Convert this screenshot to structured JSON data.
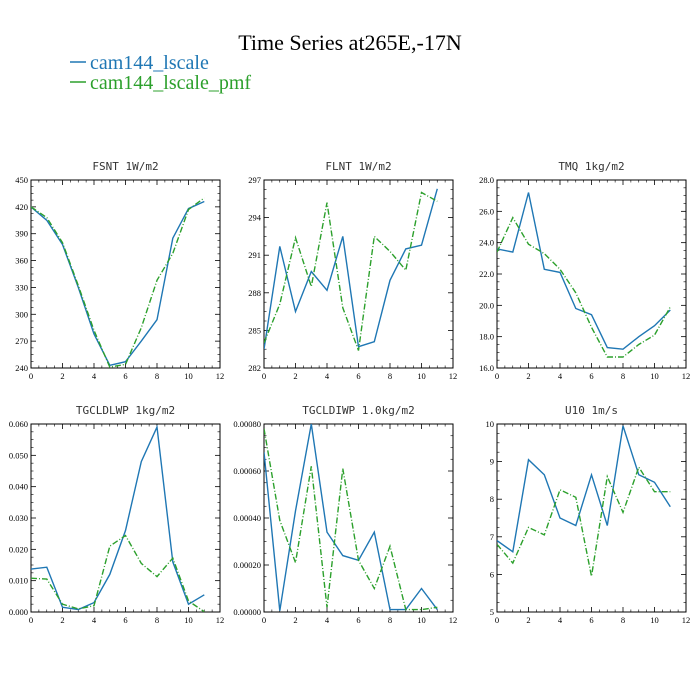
{
  "title": "Time Series at265E,-17N",
  "legend": [
    {
      "label": "cam144_lscale",
      "color": "#1f77b4",
      "dash": "solid"
    },
    {
      "label": "cam144_lscale_pmf",
      "color": "#2ca02c",
      "dash": "dashdot"
    }
  ],
  "chart_data": [
    {
      "type": "line",
      "title": "FSNT   1W/m2",
      "xlim": [
        0,
        12
      ],
      "xticks": [
        "0",
        "2",
        "4",
        "6",
        "8",
        "10",
        "12"
      ],
      "ylim": [
        240,
        450
      ],
      "yticks": [
        "240",
        "270",
        "300",
        "330",
        "360",
        "390",
        "420",
        "450"
      ],
      "x": [
        0,
        1,
        2,
        3,
        4,
        5,
        6,
        7,
        8,
        9,
        10,
        11
      ],
      "series": [
        {
          "name": "cam144_lscale",
          "values": [
            420,
            405,
            378,
            330,
            278,
            243,
            247,
            270,
            294,
            385,
            418,
            426
          ]
        },
        {
          "name": "cam144_lscale_pmf",
          "values": [
            420,
            408,
            380,
            332,
            282,
            241,
            244,
            285,
            338,
            368,
            417,
            430
          ]
        }
      ]
    },
    {
      "type": "line",
      "title": "FLNT   1W/m2",
      "xlim": [
        0,
        12
      ],
      "xticks": [
        "0",
        "2",
        "4",
        "6",
        "8",
        "10",
        "12"
      ],
      "ylim": [
        282,
        297
      ],
      "yticks": [
        "282",
        "285",
        "288",
        "291",
        "294",
        "297"
      ],
      "x": [
        0,
        1,
        2,
        3,
        4,
        5,
        6,
        7,
        8,
        9,
        10,
        11
      ],
      "series": [
        {
          "name": "cam144_lscale",
          "values": [
            283.5,
            291.7,
            286.5,
            289.7,
            288.2,
            292.5,
            283.7,
            284.1,
            289,
            291.5,
            291.8,
            296.3
          ]
        },
        {
          "name": "cam144_lscale_pmf",
          "values": [
            284,
            287.1,
            292.4,
            288.5,
            295.2,
            286.8,
            283.4,
            292.5,
            291.3,
            289.8,
            296,
            295.3
          ]
        }
      ]
    },
    {
      "type": "line",
      "title": "TMQ   1kg/m2",
      "xlim": [
        0,
        12
      ],
      "xticks": [
        "0",
        "2",
        "4",
        "6",
        "8",
        "10",
        "12"
      ],
      "ylim": [
        16,
        28
      ],
      "yticks": [
        "16.0",
        "18.0",
        "20.0",
        "22.0",
        "24.0",
        "26.0",
        "28.0"
      ],
      "x": [
        0,
        1,
        2,
        3,
        4,
        5,
        6,
        7,
        8,
        9,
        10,
        11
      ],
      "series": [
        {
          "name": "cam144_lscale",
          "values": [
            23.6,
            23.4,
            27.2,
            22.3,
            22.1,
            19.8,
            19.4,
            17.3,
            17.2,
            18,
            18.7,
            19.7
          ]
        },
        {
          "name": "cam144_lscale_pmf",
          "values": [
            23.4,
            25.6,
            23.9,
            23.3,
            22.3,
            20.8,
            18.6,
            16.7,
            16.7,
            17.5,
            18.1,
            19.9
          ]
        }
      ]
    },
    {
      "type": "line",
      "title": "TGCLDLWP   1kg/m2",
      "xlim": [
        0,
        12
      ],
      "xticks": [
        "0",
        "2",
        "4",
        "6",
        "8",
        "10",
        "12"
      ],
      "ylim": [
        0,
        0.06
      ],
      "yticks": [
        "0.000",
        "0.010",
        "0.020",
        "0.030",
        "0.040",
        "0.050",
        "0.060"
      ],
      "x": [
        0,
        1,
        2,
        3,
        4,
        5,
        6,
        7,
        8,
        9,
        10,
        11
      ],
      "series": [
        {
          "name": "cam144_lscale",
          "values": [
            0.0137,
            0.0143,
            0.0015,
            0.0008,
            0.003,
            0.012,
            0.026,
            0.048,
            0.059,
            0.016,
            0.0025,
            0.0055
          ]
        },
        {
          "name": "cam144_lscale_pmf",
          "values": [
            0.0108,
            0.0105,
            0.0025,
            0.001,
            0.002,
            0.021,
            0.0244,
            0.0155,
            0.0113,
            0.0172,
            0.0035,
            0.0001
          ]
        }
      ]
    },
    {
      "type": "line",
      "title": "TGCLDIWP   1.0kg/m2",
      "xlim": [
        0,
        12
      ],
      "xticks": [
        "0",
        "2",
        "4",
        "6",
        "8",
        "10",
        "12"
      ],
      "ylim": [
        0,
        0.0008
      ],
      "yticks": [
        "0.00000",
        "0.00020",
        "0.00040",
        "0.00060",
        "0.00080"
      ],
      "x": [
        0,
        1,
        2,
        3,
        4,
        5,
        6,
        7,
        8,
        9,
        10,
        11
      ],
      "series": [
        {
          "name": "cam144_lscale",
          "values": [
            0.00068,
            5e-06,
            0.00043,
            0.0008,
            0.00034,
            0.00024,
            0.00022,
            0.00034,
            1e-05,
            1e-05,
            0.0001,
            1e-05
          ]
        },
        {
          "name": "cam144_lscale_pmf",
          "values": [
            0.00078,
            0.00039,
            0.00021,
            0.00062,
            2e-05,
            0.00061,
            0.00022,
            0.0001,
            0.00028,
            1e-05,
            1e-05,
            2e-05
          ]
        }
      ]
    },
    {
      "type": "line",
      "title": "U10   1m/s",
      "xlim": [
        0,
        12
      ],
      "xticks": [
        "0",
        "2",
        "4",
        "6",
        "8",
        "10",
        "12"
      ],
      "ylim": [
        5,
        10
      ],
      "yticks": [
        "5",
        "6",
        "7",
        "8",
        "9",
        "10"
      ],
      "x": [
        0,
        1,
        2,
        3,
        4,
        5,
        6,
        7,
        8,
        9,
        10,
        11
      ],
      "series": [
        {
          "name": "cam144_lscale",
          "values": [
            6.9,
            6.6,
            9.05,
            8.65,
            7.5,
            7.3,
            8.65,
            7.3,
            9.95,
            8.65,
            8.45,
            7.8
          ]
        },
        {
          "name": "cam144_lscale_pmf",
          "values": [
            6.8,
            6.3,
            7.25,
            7.05,
            8.25,
            8.05,
            5.95,
            8.6,
            7.65,
            8.85,
            8.2,
            8.2
          ]
        }
      ]
    }
  ]
}
